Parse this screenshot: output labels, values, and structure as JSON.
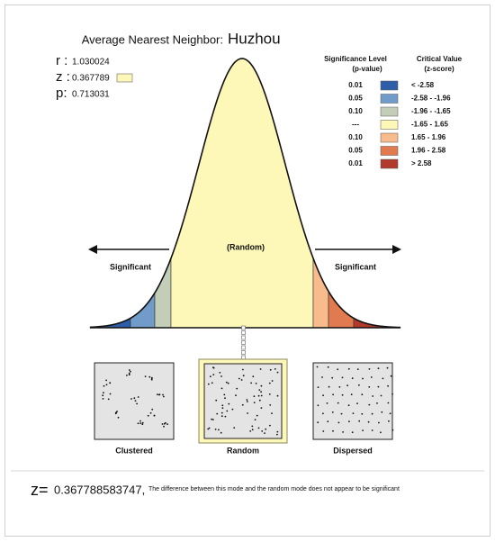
{
  "title_prefix": "Average Nearest Neighbor:",
  "title_name": "Huzhou",
  "stats": [
    {
      "label": "r :",
      "value": "1.030024"
    },
    {
      "label": "z :",
      "value": "0.367789"
    },
    {
      "label": "p:",
      "value": "0.713031"
    }
  ],
  "legend": {
    "header_left": [
      "Significance Level",
      "(p-value)"
    ],
    "header_right": [
      "Critical Value",
      "(z-score)"
    ],
    "rows": [
      {
        "p": "0.01",
        "z": "< -2.58",
        "color": "#2e5ea8"
      },
      {
        "p": "0.05",
        "z": "-2.58 - -1.96",
        "color": "#719bc9"
      },
      {
        "p": "0.10",
        "z": "-1.96 - -1.65",
        "color": "#c3cdb8"
      },
      {
        "p": "---",
        "z": "-1.65 - 1.65",
        "color": "#fdf7b8"
      },
      {
        "p": "0.10",
        "z": "1.65 - 1.96",
        "color": "#f8bb8c"
      },
      {
        "p": "0.05",
        "z": "1.96 - 2.58",
        "color": "#e27a50"
      },
      {
        "p": "0.01",
        "z": "> 2.58",
        "color": "#b23a2c"
      }
    ]
  },
  "curve": {
    "center_label": "(Random)",
    "left_label": "Significant",
    "right_label": "Significant"
  },
  "patterns": [
    "Clustered",
    "Random",
    "Dispersed"
  ],
  "footer": {
    "z_label": "z=",
    "z_value": "0.367788583747,",
    "note": "The difference between this mode and the random mode does not appear to be significant"
  }
}
